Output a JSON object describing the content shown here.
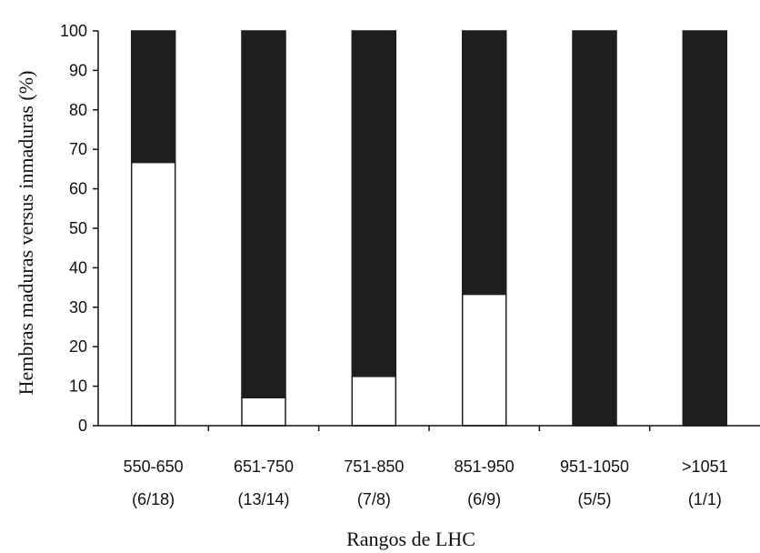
{
  "chart_data": {
    "type": "bar",
    "stacked": true,
    "categories": [
      "550-650",
      "651-750",
      "751-850",
      "851-950",
      "951-1050",
      ">1051"
    ],
    "category_counts": [
      "(6/18)",
      "(13/14)",
      "(7/8)",
      "(6/9)",
      "(5/5)",
      "(1/1)"
    ],
    "series": [
      {
        "values": [
          66.7,
          7.1,
          12.5,
          33.3,
          0,
          0
        ],
        "color": "#ffffff"
      },
      {
        "values": [
          33.3,
          92.9,
          87.5,
          66.7,
          100,
          100
        ],
        "color": "#1e1e1e"
      }
    ],
    "xlabel": "Rangos de LHC",
    "ylabel": "Hembras maduras versus inmaduras (%)",
    "ylim": [
      0,
      100
    ],
    "yticks": [
      0,
      10,
      20,
      30,
      40,
      50,
      60,
      70,
      80,
      90,
      100
    ],
    "grid": false,
    "legend": "none"
  }
}
